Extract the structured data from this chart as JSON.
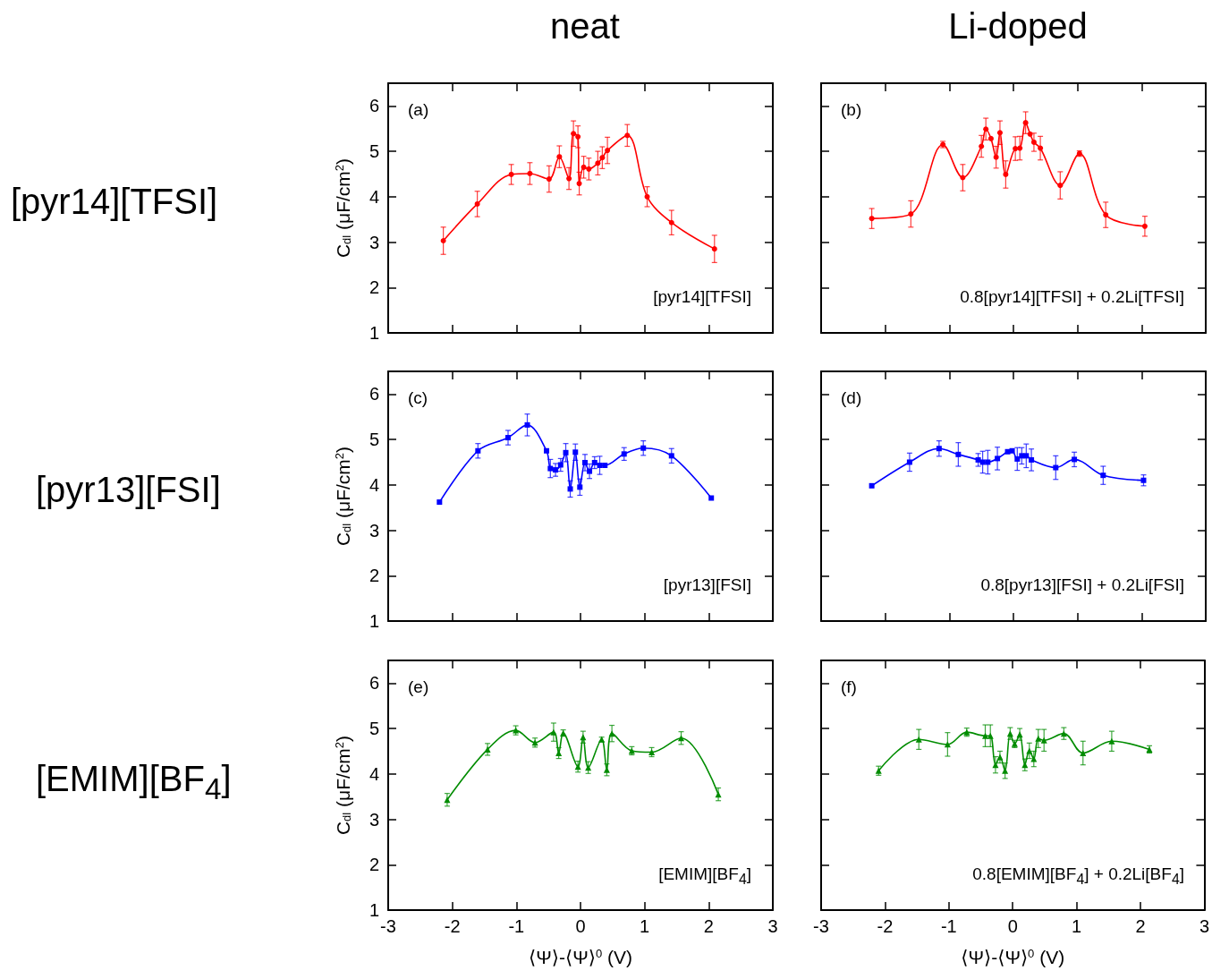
{
  "chart_data": [
    {
      "type": "line",
      "title": "neat",
      "subtitle": "[pyr14][TFSI]",
      "ylabel": "C$_{dl}$ (μF/cm$^{2}$)",
      "annotations": [
        "(a)",
        "[pyr14][TFSI]"
      ],
      "color": "#ff0000",
      "marker": "circle",
      "xlim": [
        -3,
        3
      ],
      "xticks": [
        -3,
        -2,
        -1,
        0,
        1,
        2,
        3
      ],
      "ylim": [
        1,
        6.5
      ],
      "yticks": [
        1,
        2,
        3,
        4,
        5,
        6
      ],
      "tick_labels": "y",
      "grid": false,
      "x": [
        -2.14,
        -1.61,
        -1.08,
        -0.79,
        -0.49,
        -0.33,
        -0.18,
        -0.11,
        -0.04,
        -0.02,
        0.05,
        0.13,
        0.27,
        0.34,
        0.42,
        0.73,
        1.04,
        1.42,
        2.09
      ],
      "values": [
        3.03,
        3.84,
        4.49,
        4.51,
        4.39,
        4.88,
        4.4,
        5.39,
        5.32,
        4.29,
        4.65,
        4.61,
        4.74,
        4.86,
        5.02,
        5.35,
        4.0,
        3.43,
        2.85
      ],
      "errors": [
        0.3,
        0.28,
        0.22,
        0.24,
        0.29,
        0.24,
        0.24,
        0.28,
        0.24,
        0.25,
        0.24,
        0.24,
        0.26,
        0.24,
        0.29,
        0.24,
        0.22,
        0.27,
        0.3
      ]
    },
    {
      "type": "line",
      "title": "Li-doped",
      "annotations": [
        "(b)",
        "0.8[pyr14][TFSI] + 0.2Li[TFSI]"
      ],
      "color": "#ff0000",
      "marker": "circle",
      "xlim": [
        -3,
        3
      ],
      "xticks": [
        -3,
        -2,
        -1,
        0,
        1,
        2,
        3
      ],
      "ylim": [
        1,
        6.5
      ],
      "yticks": [
        1,
        2,
        3,
        4,
        5,
        6
      ],
      "tick_labels": false,
      "grid": false,
      "x": [
        -2.21,
        -1.6,
        -1.1,
        -0.79,
        -0.5,
        -0.43,
        -0.35,
        -0.27,
        -0.21,
        -0.12,
        0.03,
        0.1,
        0.19,
        0.26,
        0.32,
        0.42,
        0.73,
        1.03,
        1.44,
        2.05
      ],
      "values": [
        3.52,
        3.62,
        5.15,
        4.42,
        5.11,
        5.49,
        5.28,
        4.87,
        5.41,
        4.49,
        5.06,
        5.07,
        5.63,
        5.38,
        5.2,
        5.07,
        4.25,
        4.95,
        3.6,
        3.35
      ],
      "errors": [
        0.22,
        0.29,
        0.07,
        0.29,
        0.24,
        0.24,
        null,
        0.24,
        0.26,
        0.3,
        0.26,
        0.26,
        0.24,
        null,
        0.2,
        0.26,
        0.3,
        0.06,
        0.28,
        0.22
      ]
    },
    {
      "type": "line",
      "subtitle": "[pyr13][FSI]",
      "ylabel": "C$_{dl}$ (μF/cm$^{2}$)",
      "annotations": [
        "(c)",
        "[pyr13][FSI]"
      ],
      "color": "#0000ff",
      "marker": "square",
      "xlim": [
        -3,
        3
      ],
      "xticks": [
        -3,
        -2,
        -1,
        0,
        1,
        2,
        3
      ],
      "ylim": [
        1,
        6.5
      ],
      "yticks": [
        1,
        2,
        3,
        4,
        5,
        6
      ],
      "tick_labels": "y",
      "grid": false,
      "x": [
        -2.2,
        -1.6,
        -1.13,
        -0.83,
        -0.53,
        -0.47,
        -0.39,
        -0.31,
        -0.23,
        -0.16,
        -0.08,
        -0.01,
        0.07,
        0.14,
        0.22,
        0.3,
        0.38,
        0.68,
        0.98,
        1.42,
        2.04
      ],
      "values": [
        3.62,
        4.75,
        5.04,
        5.32,
        4.75,
        4.36,
        4.33,
        4.44,
        4.71,
        3.91,
        4.72,
        3.95,
        4.49,
        4.3,
        4.49,
        4.43,
        4.43,
        4.68,
        4.81,
        4.64,
        3.71
      ],
      "errors": [
        null,
        0.16,
        0.16,
        0.24,
        null,
        0.2,
        0.14,
        0.14,
        0.2,
        0.18,
        0.18,
        0.18,
        0.18,
        0.16,
        0.13,
        0.2,
        null,
        0.14,
        0.16,
        0.16,
        null
      ]
    },
    {
      "type": "line",
      "annotations": [
        "(d)",
        "0.8[pyr13][FSI] + 0.2Li[FSI]"
      ],
      "color": "#0000ff",
      "marker": "square",
      "xlim": [
        -3,
        3
      ],
      "xticks": [
        -3,
        -2,
        -1,
        0,
        1,
        2,
        3
      ],
      "ylim": [
        1,
        6.5
      ],
      "yticks": [
        1,
        2,
        3,
        4,
        5,
        6
      ],
      "tick_labels": false,
      "grid": false,
      "x": [
        -2.21,
        -1.62,
        -1.16,
        -0.86,
        -0.55,
        -0.48,
        -0.4,
        -0.25,
        -0.09,
        -0.02,
        0.06,
        0.13,
        0.2,
        0.28,
        0.66,
        0.95,
        1.4,
        2.03
      ],
      "values": [
        3.98,
        4.5,
        4.8,
        4.67,
        4.55,
        4.5,
        4.5,
        4.58,
        4.73,
        4.75,
        4.57,
        4.64,
        4.64,
        4.55,
        4.38,
        4.56,
        4.21,
        4.1
      ],
      "errors": [
        null,
        0.2,
        0.17,
        0.26,
        0.14,
        0.24,
        0.26,
        0.25,
        null,
        null,
        0.25,
        0.18,
        0.26,
        0.24,
        0.26,
        0.16,
        0.2,
        0.12
      ]
    },
    {
      "type": "line",
      "subtitle": "[EMIM][BF$_{4}$]",
      "xlabel": "⟨Ψ⟩-⟨Ψ⟩$^{0}$ (V)",
      "ylabel": "C$_{dl}$ (μF/cm$^{2}$)",
      "annotations": [
        "(e)",
        "[EMIM][BF$_{4}$]"
      ],
      "color": "#008c00",
      "marker": "triangle",
      "xlim": [
        -3,
        3
      ],
      "xticks": [
        -3,
        -2,
        -1,
        0,
        1,
        2,
        3
      ],
      "ylim": [
        1,
        6.5
      ],
      "yticks": [
        1,
        2,
        3,
        4,
        5,
        6
      ],
      "grid": false,
      "x": [
        -2.08,
        -1.45,
        -1.01,
        -0.71,
        -0.42,
        -0.34,
        -0.27,
        -0.04,
        0.04,
        0.12,
        0.33,
        0.41,
        0.49,
        0.8,
        1.11,
        1.57,
        2.15
      ],
      "values": [
        3.43,
        4.54,
        4.96,
        4.69,
        4.92,
        4.46,
        4.9,
        4.16,
        4.81,
        4.14,
        4.76,
        4.09,
        4.89,
        4.51,
        4.48,
        4.79,
        3.55
      ],
      "errors": [
        0.14,
        0.13,
        0.1,
        0.1,
        0.2,
        0.12,
        0.07,
        0.12,
        0.13,
        0.13,
        0.05,
        0.13,
        0.18,
        0.09,
        0.1,
        0.14,
        0.14
      ]
    },
    {
      "type": "line",
      "xlabel": "⟨Ψ⟩-⟨Ψ⟩$^{0}$ (V)",
      "annotations": [
        "(f)",
        "0.8[EMIM][BF$_{4}$] + 0.2Li[BF$_{4}$]"
      ],
      "color": "#008c00",
      "marker": "triangle",
      "xlim": [
        -3,
        3
      ],
      "xticks": [
        -3,
        -2,
        -1,
        0,
        1,
        2,
        3
      ],
      "ylim": [
        1,
        6.5
      ],
      "yticks": [
        1,
        2,
        3,
        4,
        5,
        6
      ],
      "tick_labels": "x",
      "grid": false,
      "x": [
        -2.1,
        -1.47,
        -1.02,
        -0.72,
        -0.43,
        -0.35,
        -0.27,
        -0.2,
        -0.12,
        -0.04,
        0.03,
        0.11,
        0.19,
        0.26,
        0.33,
        0.4,
        0.49,
        0.8,
        1.1,
        1.55,
        2.14
      ],
      "values": [
        4.07,
        4.76,
        4.65,
        4.92,
        4.84,
        4.84,
        4.2,
        4.37,
        4.07,
        4.89,
        4.66,
        4.87,
        4.2,
        4.51,
        4.33,
        4.78,
        4.74,
        4.89,
        4.46,
        4.72,
        4.54
      ],
      "errors": [
        0.1,
        0.22,
        0.26,
        0.09,
        0.24,
        0.24,
        0.18,
        0.13,
        0.17,
        0.13,
        0.08,
        0.13,
        0.13,
        0.17,
        0.17,
        0.2,
        0.24,
        0.13,
        0.26,
        0.22,
        0.08
      ]
    }
  ]
}
